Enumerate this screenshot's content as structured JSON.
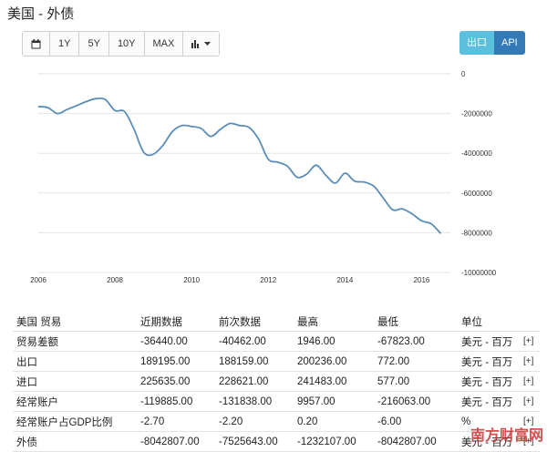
{
  "title": "美国 - 外债",
  "toolbar": {
    "calendar_icon": "calendar-icon",
    "ranges": [
      "1Y",
      "5Y",
      "10Y",
      "MAX"
    ],
    "chart_type_icon": "bar-chart-icon"
  },
  "actions": {
    "export_label": "出口",
    "api_label": "API"
  },
  "chart_data": {
    "type": "line",
    "x": [
      2006.0,
      2006.25,
      2006.5,
      2006.75,
      2007.0,
      2007.25,
      2007.5,
      2007.75,
      2008.0,
      2008.25,
      2008.5,
      2008.75,
      2009.0,
      2009.25,
      2009.5,
      2009.75,
      2010.0,
      2010.25,
      2010.5,
      2010.75,
      2011.0,
      2011.25,
      2011.5,
      2011.75,
      2012.0,
      2012.25,
      2012.5,
      2012.75,
      2013.0,
      2013.25,
      2013.5,
      2013.75,
      2014.0,
      2014.25,
      2014.5,
      2014.75,
      2015.0,
      2015.25,
      2015.5,
      2015.75,
      2016.0,
      2016.25,
      2016.5
    ],
    "values": [
      -1650000,
      -1700000,
      -2000000,
      -1800000,
      -1600000,
      -1400000,
      -1250000,
      -1300000,
      -1850000,
      -1900000,
      -2800000,
      -3950000,
      -4050000,
      -3600000,
      -2900000,
      -2600000,
      -2650000,
      -2750000,
      -3150000,
      -2800000,
      -2500000,
      -2600000,
      -2700000,
      -3300000,
      -4300000,
      -4450000,
      -4650000,
      -5200000,
      -5050000,
      -4600000,
      -5100000,
      -5500000,
      -5000000,
      -5400000,
      -5450000,
      -5650000,
      -6250000,
      -6850000,
      -6800000,
      -7050000,
      -7400000,
      -7550000,
      -8040000
    ],
    "x_ticks": [
      "2006",
      "2008",
      "2010",
      "2012",
      "2014",
      "2016"
    ],
    "y_ticks": [
      "0",
      "-2000000",
      "-4000000",
      "-6000000",
      "-8000000",
      "-10000000"
    ],
    "ylim": [
      -10000000,
      0
    ],
    "xlim": [
      2006.0,
      2016.75
    ],
    "grid": true,
    "color": "#5b8db8"
  },
  "table": {
    "headers": [
      "美国 贸易",
      "近期数据",
      "前次数据",
      "最高",
      "最低",
      "单位",
      ""
    ],
    "rows": [
      [
        "贸易差额",
        "-36440.00",
        "-40462.00",
        "1946.00",
        "-67823.00",
        "美元 - 百万",
        "[+]"
      ],
      [
        "出口",
        "189195.00",
        "188159.00",
        "200236.00",
        "772.00",
        "美元 - 百万",
        "[+]"
      ],
      [
        "进口",
        "225635.00",
        "228621.00",
        "241483.00",
        "577.00",
        "美元 - 百万",
        "[+]"
      ],
      [
        "经常账户",
        "-119885.00",
        "-131838.00",
        "9957.00",
        "-216063.00",
        "美元 - 百万",
        "[+]"
      ],
      [
        "经常账户占GDP比例",
        "-2.70",
        "-2.20",
        "0.20",
        "-6.00",
        "%",
        "[+]"
      ],
      [
        "外债",
        "-8042807.00",
        "-7525643.00",
        "-1232107.00",
        "-8042807.00",
        "美元 - 百万",
        "[+]"
      ]
    ]
  },
  "watermark": "南方财富网"
}
